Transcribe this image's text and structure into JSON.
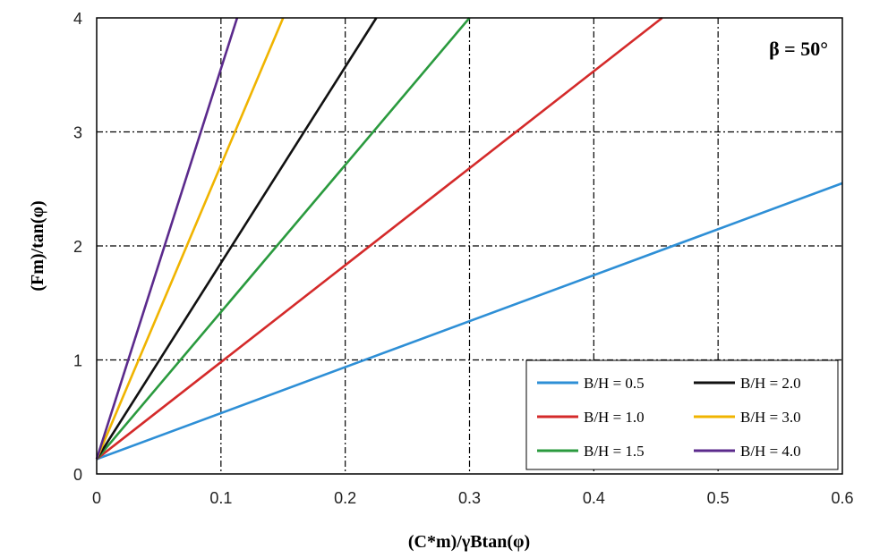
{
  "chart_data": {
    "type": "line",
    "title": "",
    "annotation": "β = 50°",
    "xlabel": "(C*m)/γBtan(φ)",
    "ylabel": "(Fm)/tan(φ)",
    "xlim": [
      0,
      0.6
    ],
    "ylim": [
      0,
      4
    ],
    "xticks": [
      0,
      0.1,
      0.2,
      0.3,
      0.4,
      0.5,
      0.6
    ],
    "xtick_labels": [
      "0",
      "0.1",
      "0.2",
      "0.3",
      "0.4",
      "0.5",
      "0.6"
    ],
    "yticks": [
      0,
      1,
      2,
      3,
      4
    ],
    "ytick_labels": [
      "0",
      "1",
      "2",
      "3",
      "4"
    ],
    "grid": true,
    "legend_position": "bottom-right",
    "series": [
      {
        "name": "B/H = 0.5",
        "color": "#2e8fd6",
        "points": [
          [
            0,
            0.13
          ],
          [
            0.6,
            2.55
          ]
        ]
      },
      {
        "name": "B/H = 1.0",
        "color": "#d42a2a",
        "points": [
          [
            0,
            0.13
          ],
          [
            0.455,
            4.0
          ]
        ]
      },
      {
        "name": "B/H = 1.5",
        "color": "#2a9a3e",
        "points": [
          [
            0,
            0.13
          ],
          [
            0.3,
            4.0
          ]
        ]
      },
      {
        "name": "B/H = 2.0",
        "color": "#111111",
        "points": [
          [
            0,
            0.13
          ],
          [
            0.225,
            4.0
          ]
        ]
      },
      {
        "name": "B/H = 3.0",
        "color": "#f0b400",
        "points": [
          [
            0,
            0.13
          ],
          [
            0.15,
            4.0
          ]
        ]
      },
      {
        "name": "B/H = 4.0",
        "color": "#5b2a8c",
        "points": [
          [
            0,
            0.13
          ],
          [
            0.113,
            4.0
          ]
        ]
      }
    ]
  }
}
